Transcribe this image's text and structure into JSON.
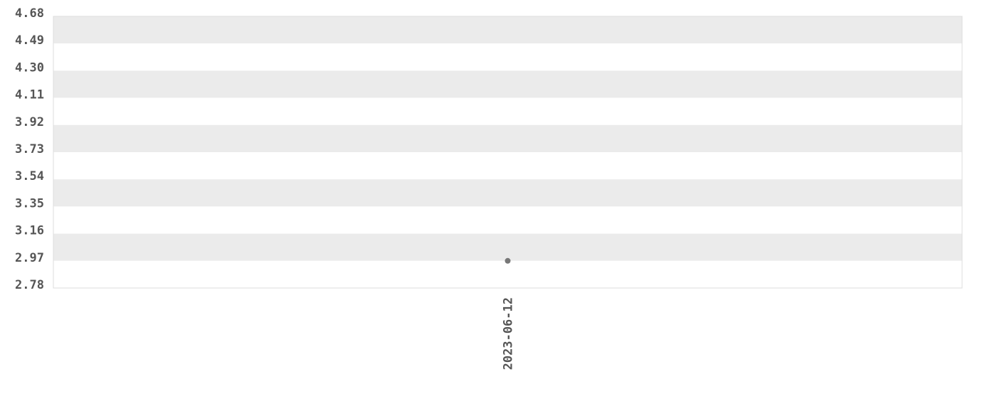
{
  "chart_data": {
    "type": "scatter",
    "title": "",
    "xlabel": "",
    "ylabel": "",
    "x_categories": [
      "2023-06-12"
    ],
    "points": [
      {
        "x": "2023-06-12",
        "y": 2.97
      }
    ],
    "y_ticks": [
      "2.78",
      "2.97",
      "3.16",
      "3.35",
      "3.54",
      "3.73",
      "3.92",
      "4.11",
      "4.30",
      "4.49",
      "4.68"
    ],
    "ylim": [
      2.78,
      4.68
    ],
    "grid": "alternating horizontal bands",
    "legend": "none",
    "colors": {
      "point": "#777777",
      "band": "#ebebeb",
      "text": "#555555",
      "border": "#dddddd"
    }
  }
}
